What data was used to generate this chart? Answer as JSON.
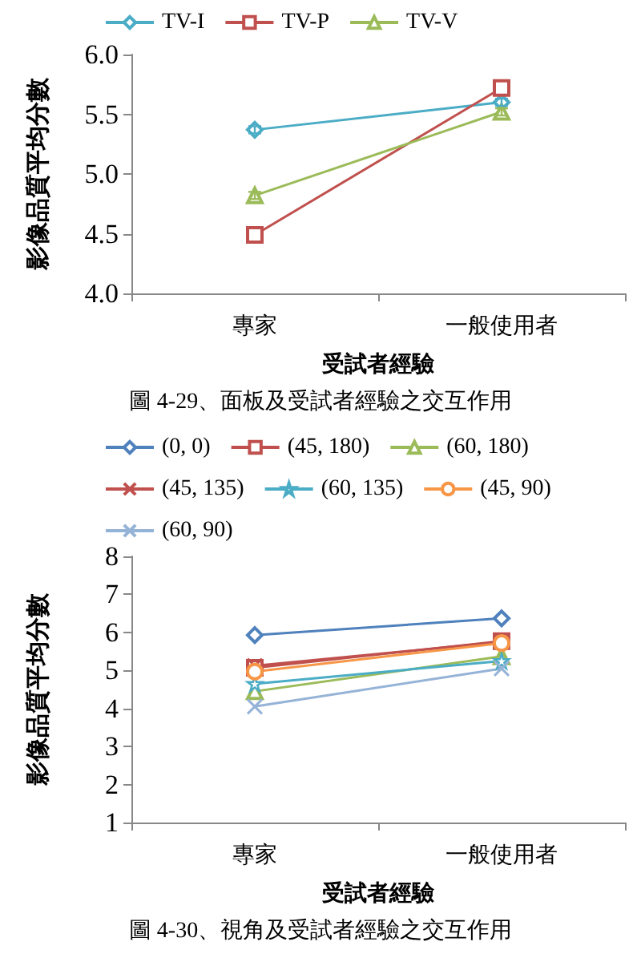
{
  "chart_data": [
    {
      "type": "line",
      "title": "圖 4-29、面板及受試者經驗之交互作用",
      "xlabel": "受試者經驗",
      "ylabel": "影像品質平均分數",
      "categories": [
        "專家",
        "一般使用者"
      ],
      "ylim": [
        4.0,
        6.0
      ],
      "yticks": [
        {
          "value": 4.0,
          "label": "4.0"
        },
        {
          "value": 4.5,
          "label": "4.5"
        },
        {
          "value": 5.0,
          "label": "5.0"
        },
        {
          "value": 5.5,
          "label": "5.5"
        },
        {
          "value": 6.0,
          "label": "6.0"
        }
      ],
      "grid": false,
      "legend": "top",
      "series": [
        {
          "name": "TV-I",
          "color": "#4bacc6",
          "marker": "diamond",
          "values": [
            5.37,
            5.6
          ],
          "errors": [
            0.03,
            0.03
          ]
        },
        {
          "name": "TV-P",
          "color": "#c0504d",
          "marker": "square",
          "values": [
            4.49,
            5.72
          ]
        },
        {
          "name": "TV-V",
          "color": "#9bbb59",
          "marker": "triangle",
          "values": [
            4.82,
            5.52
          ],
          "errors": [
            0.03,
            0.03
          ]
        }
      ]
    },
    {
      "type": "line",
      "title": "圖 4-30、視角及受試者經驗之交互作用",
      "xlabel": "受試者經驗",
      "ylabel": "影像品質平均分數",
      "categories": [
        "專家",
        "一般使用者"
      ],
      "ylim": [
        1,
        8
      ],
      "yticks": [
        1,
        2,
        3,
        4,
        5,
        6,
        7,
        8
      ],
      "grid": false,
      "legend": "top",
      "series": [
        {
          "name": "(0, 0)",
          "color": "#4f81bd",
          "marker": "diamond",
          "values": [
            5.93,
            6.37
          ]
        },
        {
          "name": "(45, 180)",
          "color": "#c0504d",
          "marker": "square",
          "values": [
            5.07,
            5.77
          ]
        },
        {
          "name": "(60, 180)",
          "color": "#9bbb59",
          "marker": "triangle",
          "values": [
            4.45,
            5.37
          ]
        },
        {
          "name": "(45, 135)",
          "color": "#c0504d",
          "marker": "cross",
          "values": [
            5.12,
            5.75
          ]
        },
        {
          "name": "(60, 135)",
          "color": "#4bacc6",
          "marker": "star",
          "values": [
            4.65,
            5.25
          ]
        },
        {
          "name": "(45, 90)",
          "color": "#f79646",
          "marker": "circle",
          "values": [
            4.97,
            5.72
          ]
        },
        {
          "name": "(60, 90)",
          "color": "#95b3d7",
          "marker": "cross",
          "values": [
            4.05,
            5.05
          ]
        }
      ]
    }
  ]
}
